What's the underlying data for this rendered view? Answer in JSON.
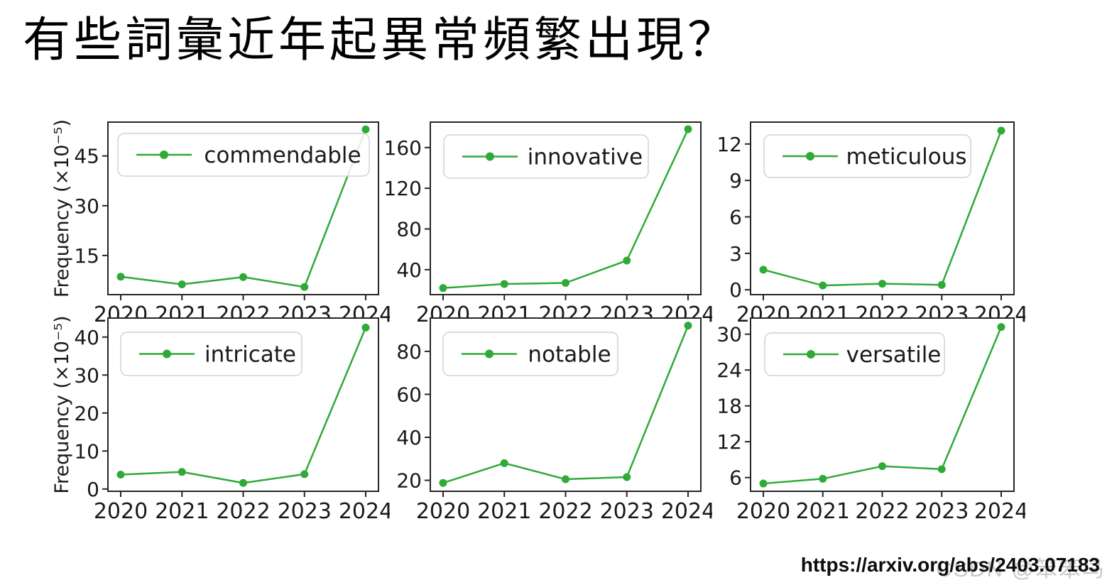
{
  "slide": {
    "title": "有些詞彙近年起異常頻繁出現？",
    "source_url": "https://arxiv.org/abs/2403.07183",
    "watermark": "CSDN @笨笨鸟"
  },
  "colors": {
    "line_green": "#2faa38",
    "axis": "#262626",
    "tick_text": "#1a1a1a",
    "legend_border": "#d2d2d2"
  },
  "chart_data": [
    {
      "type": "line",
      "legend": "commendable",
      "x": [
        "2020",
        "2021",
        "2022",
        "2023",
        "2024"
      ],
      "values": [
        8.6,
        6.3,
        8.5,
        5.5,
        53.0
      ],
      "yticks": [
        15,
        30,
        45
      ],
      "ylim": [
        3.2,
        55.2
      ],
      "xlabel": "",
      "ylabel": "Frequency (×10⁻⁵)",
      "legend_position": "upper left",
      "grid": false
    },
    {
      "type": "line",
      "legend": "innovative",
      "x": [
        "2020",
        "2021",
        "2022",
        "2023",
        "2024"
      ],
      "values": [
        22,
        26,
        27,
        49,
        178
      ],
      "yticks": [
        40,
        80,
        120,
        160
      ],
      "ylim": [
        15.5,
        185
      ],
      "xlabel": "",
      "ylabel": "",
      "legend_position": "upper left",
      "grid": false
    },
    {
      "type": "line",
      "legend": "meticulous",
      "x": [
        "2020",
        "2021",
        "2022",
        "2023",
        "2024"
      ],
      "values": [
        1.65,
        0.35,
        0.5,
        0.4,
        13.1
      ],
      "yticks": [
        0,
        3,
        6,
        9,
        12
      ],
      "ylim": [
        -0.4,
        13.8
      ],
      "xlabel": "",
      "ylabel": "",
      "legend_position": "upper left",
      "grid": false
    },
    {
      "type": "line",
      "legend": "intricate",
      "x": [
        "2020",
        "2021",
        "2022",
        "2023",
        "2024"
      ],
      "values": [
        3.8,
        4.5,
        1.6,
        3.9,
        42.5
      ],
      "yticks": [
        0,
        10,
        20,
        30,
        40
      ],
      "ylim": [
        -0.6,
        45
      ],
      "xlabel": "",
      "ylabel": "Frequency (×10⁻⁵)",
      "legend_position": "upper left",
      "grid": false
    },
    {
      "type": "line",
      "legend": "notable",
      "x": [
        "2020",
        "2021",
        "2022",
        "2023",
        "2024"
      ],
      "values": [
        18.8,
        28,
        20.5,
        21.5,
        92
      ],
      "yticks": [
        20,
        40,
        60,
        80
      ],
      "ylim": [
        14.9,
        95.5
      ],
      "xlabel": "",
      "ylabel": "",
      "legend_position": "upper left",
      "grid": false
    },
    {
      "type": "line",
      "legend": "versatile",
      "x": [
        "2020",
        "2021",
        "2022",
        "2023",
        "2024"
      ],
      "values": [
        5.0,
        5.8,
        7.9,
        7.4,
        31.2
      ],
      "yticks": [
        6,
        12,
        18,
        24,
        30
      ],
      "ylim": [
        3.7,
        32.7
      ],
      "xlabel": "",
      "ylabel": "",
      "legend_position": "upper left",
      "grid": false
    }
  ]
}
